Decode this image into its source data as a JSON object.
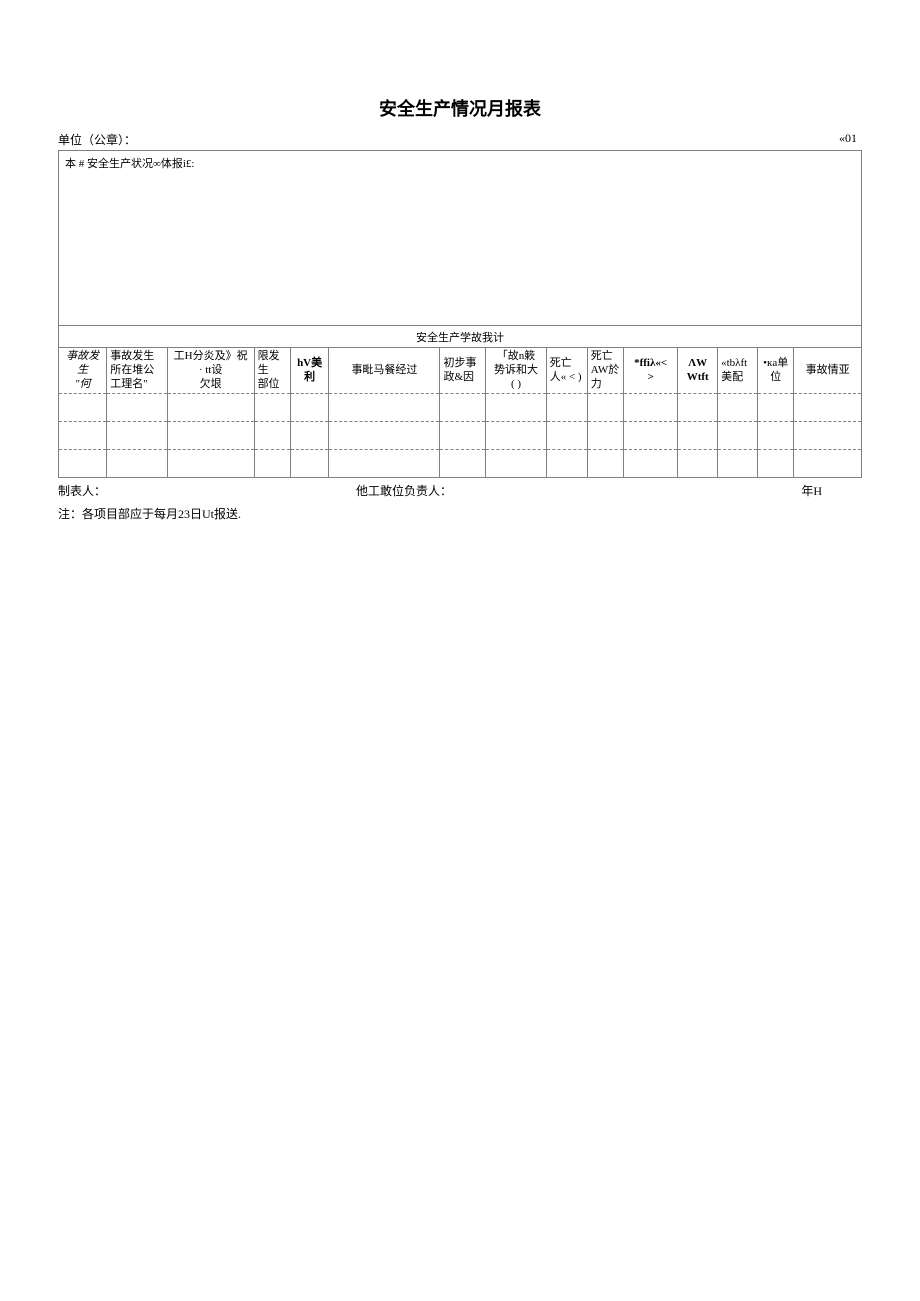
{
  "title": "安全生产情况月报表",
  "header": {
    "unit_label": "单位（公章）：",
    "right_code": "«01"
  },
  "desc_label": "本 # 安全生产状况∞体报i£:",
  "subtitle": "安全生产学故我计",
  "columns": {
    "c0": "亊故发生\n\"何",
    "c1": "事故发生所在堆公工理名\"",
    "c2": "工H分炎及》祝 · tt设\n欠垠",
    "c3": "限发生\n部位",
    "c4": "hV美利",
    "c5": "事毗马餐经过",
    "c6": "初步事政&因",
    "c7": "「故n簌\n势诉和大\n( )",
    "c8": "死亡人« < )",
    "c9": "死亡AW於力",
    "c10": "*ffiλ«<\n>",
    "c11": "ΛW\nWtft",
    "c12": "«tbλft美配",
    "c13": "•кa单位",
    "c14": "事故情亚"
  },
  "footer": {
    "maker": "制表人：",
    "responsible": "他工敢位负责人：",
    "date": "年H",
    "note": "注：各项目部应于每月23日Ut报送."
  },
  "style": {
    "widths": [
      "40",
      "50",
      "72",
      "30",
      "32",
      "92",
      "38",
      "50",
      "34",
      "30",
      "45",
      "33",
      "32",
      "30",
      "56"
    ]
  }
}
